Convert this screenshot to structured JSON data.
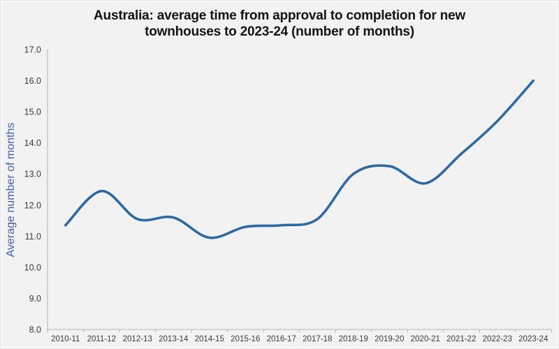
{
  "chart_data": {
    "type": "line",
    "title": "Australia: average time from approval to completion for new townhouses to 2023-24 (number of months)",
    "title_lines": [
      "Australia: average time from approval to completion for new",
      "townhouses to 2023-24 (number of months)"
    ],
    "xlabel": "",
    "ylabel": "Average number of months",
    "categories": [
      "2010-11",
      "2011-12",
      "2012-13",
      "2013-14",
      "2014-15",
      "2015-16",
      "2016-17",
      "2017-18",
      "2018-19",
      "2019-20",
      "2020-21",
      "2021-22",
      "2022-23",
      "2023-24"
    ],
    "values": [
      11.35,
      12.45,
      11.55,
      11.6,
      10.95,
      11.3,
      11.35,
      11.55,
      13.0,
      13.25,
      12.7,
      13.65,
      14.7,
      16.0
    ],
    "ylim": [
      8.0,
      17.0
    ],
    "ytick_step": 1.0,
    "ytick_labels": [
      "8.0",
      "9.0",
      "10.0",
      "11.0",
      "12.0",
      "13.0",
      "14.0",
      "15.0",
      "16.0",
      "17.0"
    ],
    "grid": false,
    "legend_position": "none",
    "smooth_line": true,
    "colors": {
      "line": "#2F69A2",
      "axis": "#bfbfbf",
      "tick_label": "#3a3a3a",
      "ylabel_text": "#4060AE",
      "title_text": "#141414",
      "background": "#f2f2f2"
    }
  }
}
